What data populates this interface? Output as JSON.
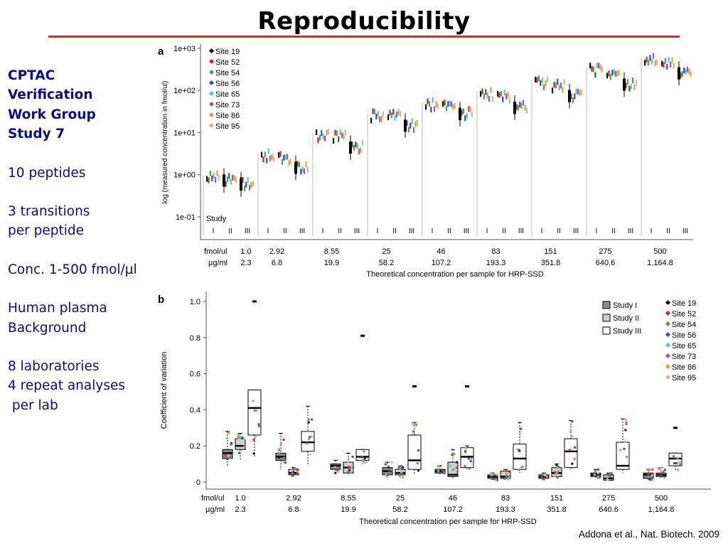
{
  "slide": {
    "title": "Reproducibility",
    "citation": "Addona et al., Nat. Biotech. 2009",
    "accent_color": "#c0392b",
    "side_text_color": "#0a0a8c"
  },
  "sidebar": {
    "heading": [
      "CPTAC",
      "Verification",
      "Work Group",
      "Study 7"
    ],
    "blocks": [
      [
        "10 peptides"
      ],
      [
        "3 transitions",
        "per peptide"
      ],
      [
        "Conc. 1-500 fmol/µl"
      ],
      [
        "Human plasma",
        "Background"
      ],
      [
        "8 laboratories",
        "4 repeat analyses",
        " per lab"
      ]
    ]
  },
  "chart_data": [
    {
      "panel": "a",
      "type": "scatter",
      "ylabel": "log (measured concentration in fmol/ul)",
      "xlabel": "Theoretical concentration per sample for HRP-SSD",
      "y_scale": "log",
      "y_ticks": [
        "1e-01",
        "1e+00",
        "1e+01",
        "1e+02",
        "1e+03"
      ],
      "ylim": [
        0.1,
        1000
      ],
      "axis_label_row1": "fmol/ul",
      "axis_label_row2": "µg/ml",
      "categories_fmol": [
        "1.0",
        "2.92",
        "8.55",
        "25",
        "46",
        "83",
        "151",
        "275",
        "500"
      ],
      "categories_ugml": [
        "2.3",
        "6.8",
        "19.9",
        "58.2",
        "107.2",
        "193.3",
        "351.8",
        "640.6",
        "1,164.8"
      ],
      "study_label": "Study",
      "studies": [
        "I",
        "II",
        "III"
      ],
      "legend_position": "top-left",
      "sites": [
        {
          "name": "Site 19",
          "color": "#111111"
        },
        {
          "name": "Site 52",
          "color": "#e02020"
        },
        {
          "name": "Site 54",
          "color": "#3cb043"
        },
        {
          "name": "Site 56",
          "color": "#2a4fb5"
        },
        {
          "name": "Site 65",
          "color": "#4cc3e8"
        },
        {
          "name": "Site 73",
          "color": "#b04fb5"
        },
        {
          "name": "Site 86",
          "color": "#f59a1a"
        },
        {
          "name": "Site 95",
          "color": "#d9b58c"
        }
      ],
      "median_measured": [
        [
          0.85,
          0.75,
          0.6
        ],
        [
          2.8,
          2.4,
          1.5
        ],
        [
          8.5,
          8.0,
          4.5
        ],
        [
          25,
          25,
          15
        ],
        [
          45,
          45,
          28
        ],
        [
          80,
          70,
          40
        ],
        [
          155,
          130,
          75
        ],
        [
          300,
          250,
          140
        ],
        [
          520,
          420,
          260
        ]
      ]
    },
    {
      "panel": "b",
      "type": "box",
      "ylabel": "Coefficient of variation",
      "xlabel": "Theoretical concentration per sample for HRP-SSD",
      "ylim": [
        0,
        1.0
      ],
      "y_ticks": [
        "0",
        "0.2",
        "0.4",
        "0.6",
        "0.8",
        "1.0"
      ],
      "axis_label_row1": "fmol/ul",
      "axis_label_row2": "µg/ml",
      "categories_fmol": [
        "1.0",
        "2.92",
        "8.55",
        "25",
        "46",
        "83",
        "151",
        "275",
        "500"
      ],
      "categories_ugml": [
        "2.3",
        "6.8",
        "19.9",
        "58.2",
        "107.2",
        "193.3",
        "351.8",
        "640.6",
        "1,164.8"
      ],
      "legend_position": "top-right",
      "study_legend": [
        {
          "name": "Study I",
          "fill": "#8c8c8c"
        },
        {
          "name": "Study II",
          "fill": "#d0d0d0"
        },
        {
          "name": "Study III",
          "fill": "#ffffff"
        }
      ],
      "site_legend": [
        "Site 19",
        "Site 52",
        "Site 54",
        "Site 56",
        "Site 65",
        "Site 73",
        "Site 86",
        "Site 95"
      ],
      "boxes": [
        [
          {
            "q1": 0.13,
            "med": 0.16,
            "q3": 0.18,
            "lo": 0.09,
            "hi": 0.28
          },
          {
            "q1": 0.18,
            "med": 0.2,
            "q3": 0.24,
            "lo": 0.12,
            "hi": 0.27
          },
          {
            "q1": 0.26,
            "med": 0.41,
            "q3": 0.51,
            "lo": 0.14,
            "hi": 0.51
          }
        ],
        [
          {
            "q1": 0.12,
            "med": 0.14,
            "q3": 0.16,
            "lo": 0.07,
            "hi": 0.27
          },
          {
            "q1": 0.04,
            "med": 0.05,
            "q3": 0.07,
            "lo": 0.03,
            "hi": 0.08
          },
          {
            "q1": 0.17,
            "med": 0.22,
            "q3": 0.28,
            "lo": 0.09,
            "hi": 0.42
          }
        ],
        [
          {
            "q1": 0.07,
            "med": 0.09,
            "q3": 0.1,
            "lo": 0.05,
            "hi": 0.12
          },
          {
            "q1": 0.05,
            "med": 0.08,
            "q3": 0.11,
            "lo": 0.04,
            "hi": 0.16
          },
          {
            "q1": 0.12,
            "med": 0.14,
            "q3": 0.18,
            "lo": 0.1,
            "hi": 0.18
          }
        ],
        [
          {
            "q1": 0.04,
            "med": 0.06,
            "q3": 0.08,
            "lo": 0.02,
            "hi": 0.11
          },
          {
            "q1": 0.04,
            "med": 0.05,
            "q3": 0.07,
            "lo": 0.02,
            "hi": 0.09
          },
          {
            "q1": 0.07,
            "med": 0.12,
            "q3": 0.26,
            "lo": 0.04,
            "hi": 0.33
          }
        ],
        [
          {
            "q1": 0.05,
            "med": 0.06,
            "q3": 0.07,
            "lo": 0.04,
            "hi": 0.09
          },
          {
            "q1": 0.03,
            "med": 0.04,
            "q3": 0.11,
            "lo": 0.02,
            "hi": 0.18
          },
          {
            "q1": 0.08,
            "med": 0.14,
            "q3": 0.19,
            "lo": 0.07,
            "hi": 0.2
          }
        ],
        [
          {
            "q1": 0.02,
            "med": 0.03,
            "q3": 0.04,
            "lo": 0.01,
            "hi": 0.05
          },
          {
            "q1": 0.02,
            "med": 0.03,
            "q3": 0.06,
            "lo": 0.01,
            "hi": 0.07
          },
          {
            "q1": 0.07,
            "med": 0.13,
            "q3": 0.21,
            "lo": 0.05,
            "hi": 0.33
          }
        ],
        [
          {
            "q1": 0.02,
            "med": 0.03,
            "q3": 0.04,
            "lo": 0.01,
            "hi": 0.05
          },
          {
            "q1": 0.03,
            "med": 0.05,
            "q3": 0.08,
            "lo": 0.02,
            "hi": 0.1
          },
          {
            "q1": 0.08,
            "med": 0.17,
            "q3": 0.24,
            "lo": 0.07,
            "hi": 0.34
          }
        ],
        [
          {
            "q1": 0.03,
            "med": 0.04,
            "q3": 0.05,
            "lo": 0.02,
            "hi": 0.07
          },
          {
            "q1": 0.01,
            "med": 0.02,
            "q3": 0.04,
            "lo": 0.01,
            "hi": 0.05
          },
          {
            "q1": 0.07,
            "med": 0.09,
            "q3": 0.22,
            "lo": 0.05,
            "hi": 0.35
          }
        ],
        [
          {
            "q1": 0.02,
            "med": 0.04,
            "q3": 0.05,
            "lo": 0.01,
            "hi": 0.07
          },
          {
            "q1": 0.03,
            "med": 0.04,
            "q3": 0.05,
            "lo": 0.02,
            "hi": 0.08
          },
          {
            "q1": 0.09,
            "med": 0.13,
            "q3": 0.16,
            "lo": 0.06,
            "hi": 0.16
          }
        ]
      ],
      "outliers": [
        {
          "cat": 0,
          "study": 2,
          "y": 1.0
        },
        {
          "cat": 2,
          "study": 2,
          "y": 0.81
        },
        {
          "cat": 3,
          "study": 2,
          "y": 0.53
        },
        {
          "cat": 4,
          "study": 2,
          "y": 0.53
        },
        {
          "cat": 8,
          "study": 2,
          "y": 0.3
        }
      ]
    }
  ]
}
